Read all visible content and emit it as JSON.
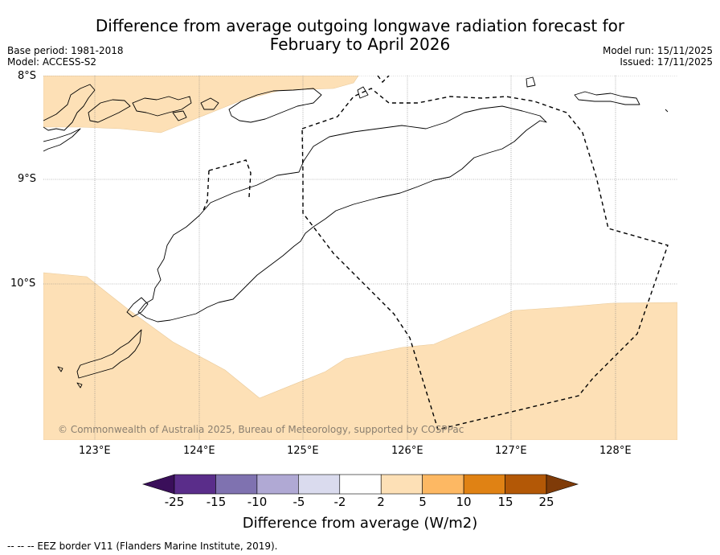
{
  "title_line1": "Difference from average outgoing longwave radiation forecast for",
  "title_line2": "February to April 2026",
  "base_period": "Base period: 1981-2018",
  "model": "Model: ACCESS-S2",
  "model_run": "Model run: 15/11/2025",
  "issued": "Issued: 17/11/2025",
  "map": {
    "lat_labels": [
      "8°S",
      "9°S",
      "10°S"
    ],
    "lon_labels": [
      "123°E",
      "124°E",
      "125°E",
      "126°E",
      "127°E",
      "128°E"
    ],
    "copyright": "© Commonwealth of Australia 2025, Bureau of Meteorology, supported by COSPPac",
    "anomaly_fill_color": "#fde0b6",
    "region_label_band": "2 to 5"
  },
  "colorbar": {
    "title": "Difference from average (W/m2)",
    "ticks": [
      "-25",
      "-15",
      "-10",
      "-5",
      "-2",
      "2",
      "5",
      "10",
      "15",
      "25"
    ],
    "colors": [
      "#3a0f5a",
      "#5a2d8a",
      "#7f72b0",
      "#b0a9d4",
      "#dadbee",
      "#ffffff",
      "#fde0b6",
      "#fdb863",
      "#e08214",
      "#b35806",
      "#7f3b08"
    ]
  },
  "footer": "--  --  -- EEZ border V11 (Flanders Marine Institute, 2019)."
}
